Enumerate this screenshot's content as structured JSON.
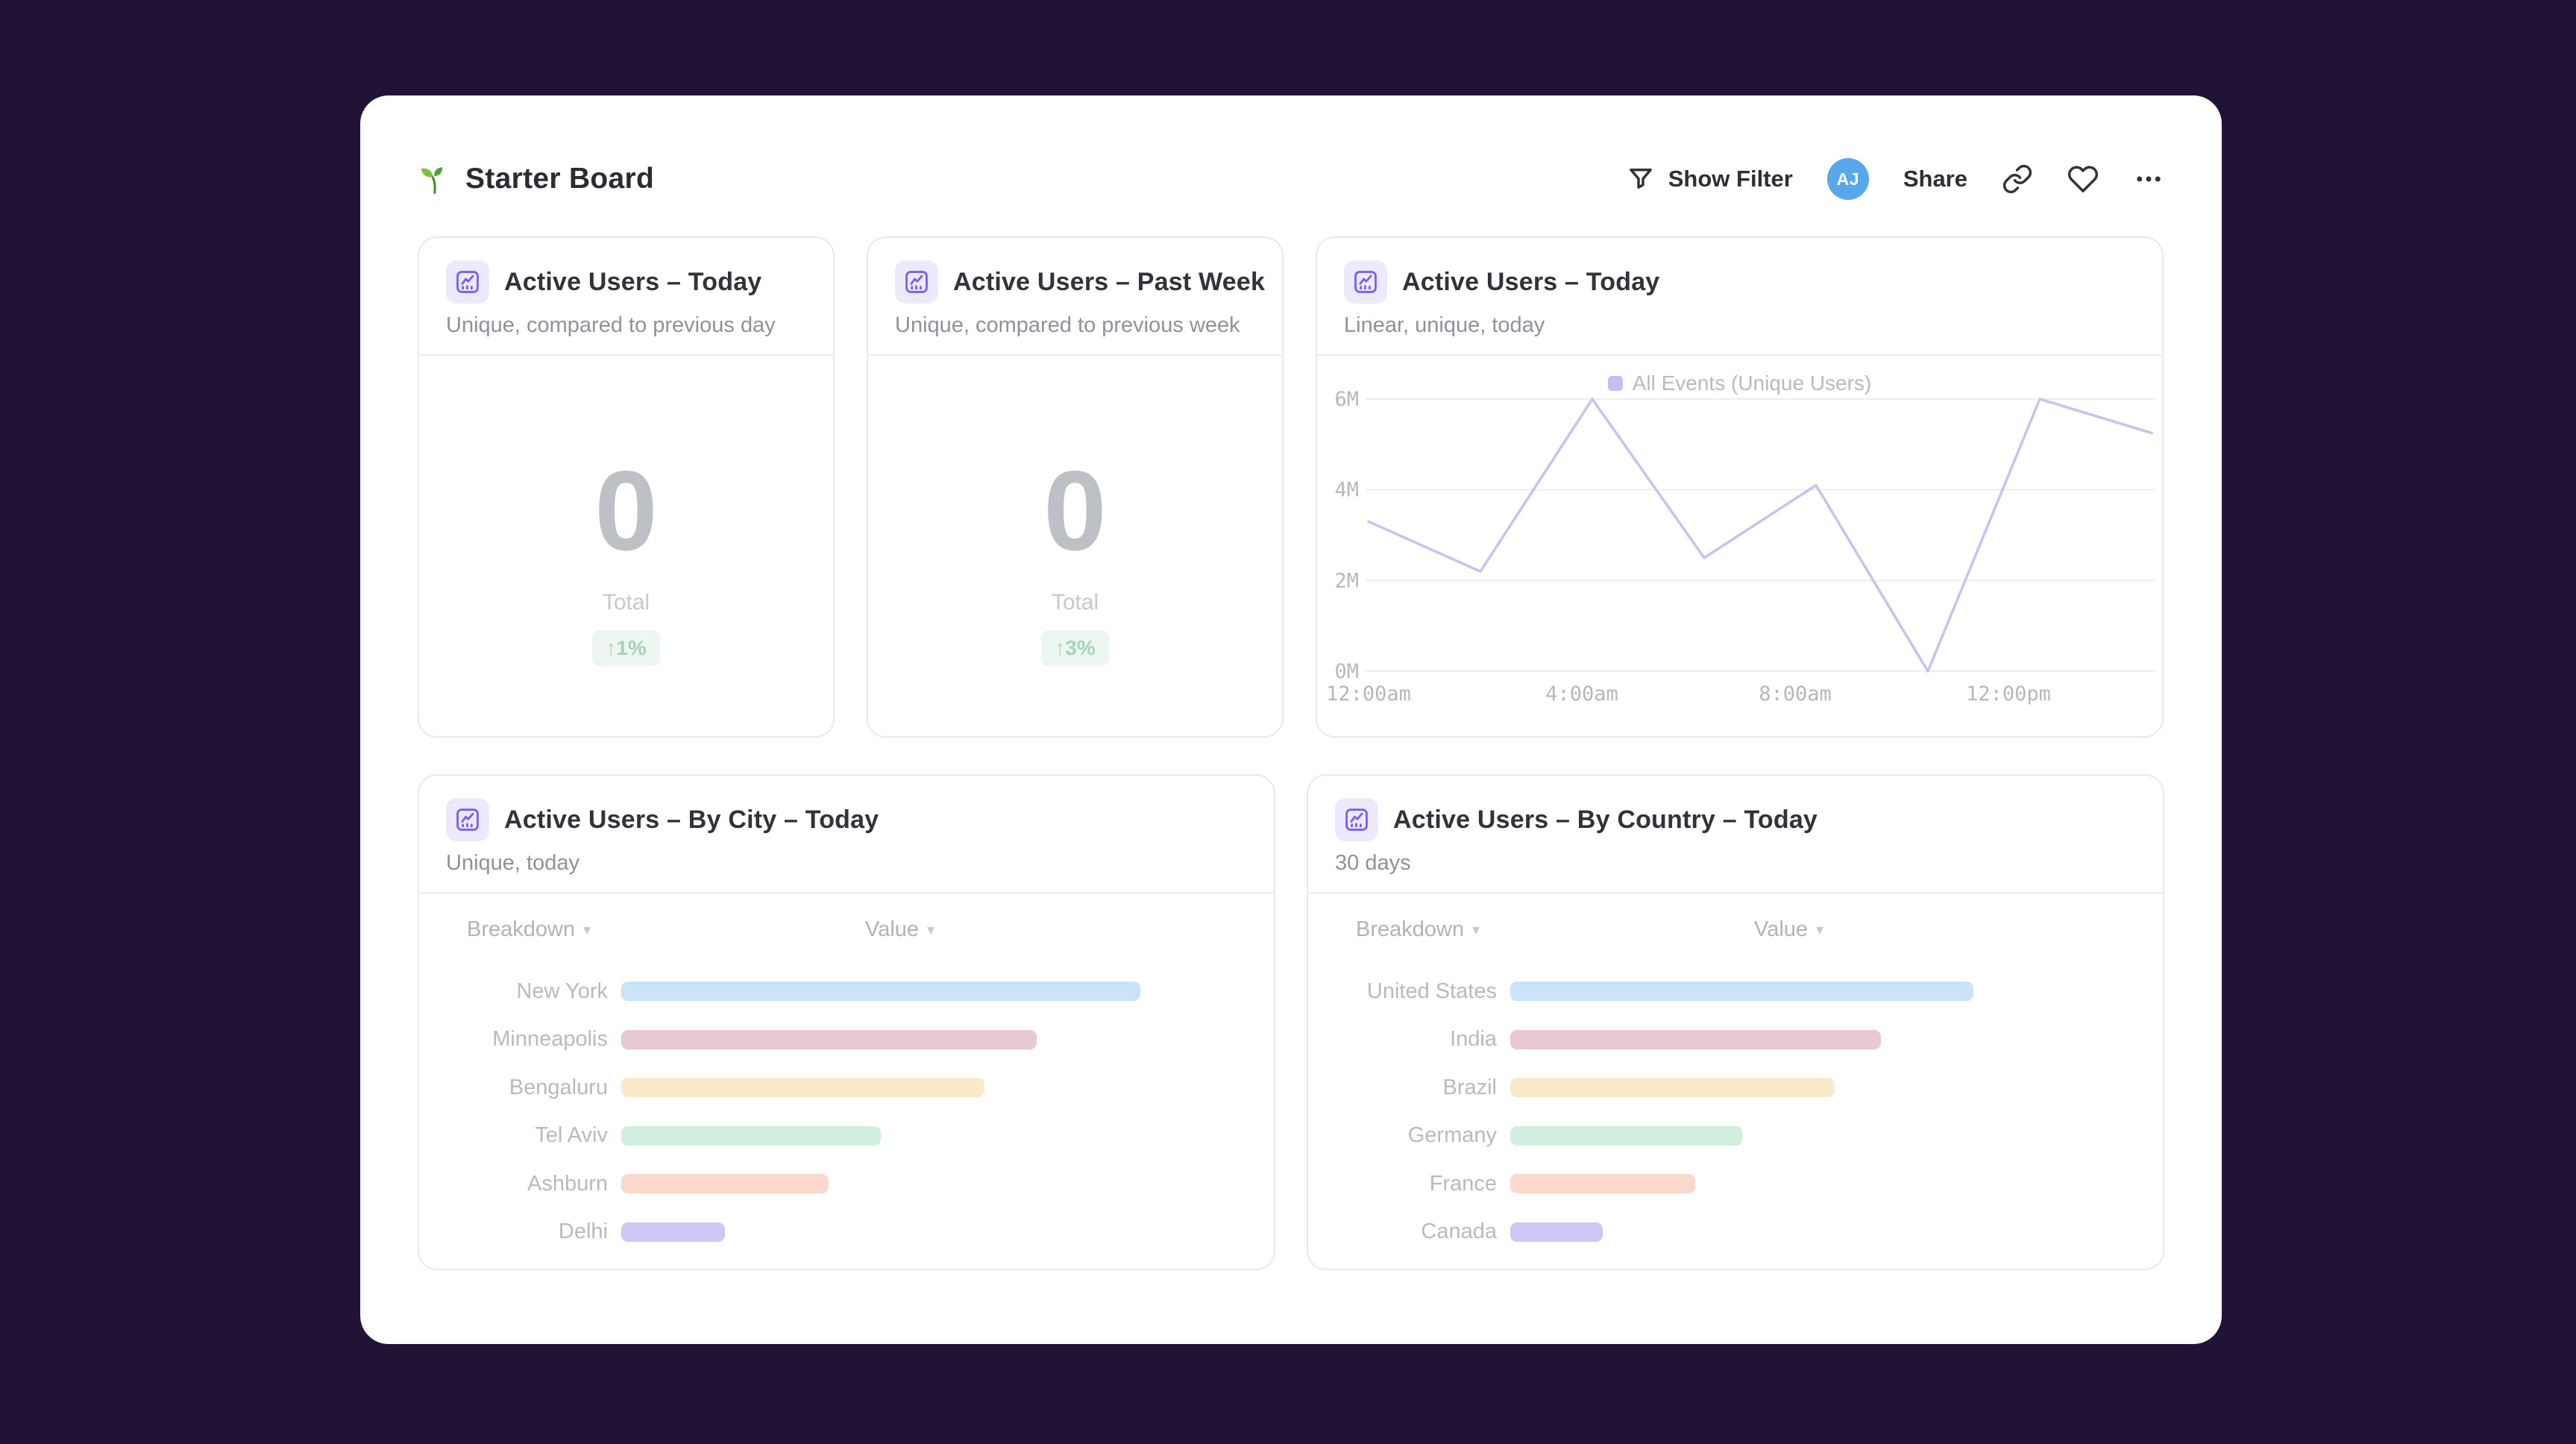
{
  "theme": {
    "page_bg": "#201336",
    "accent_purple": "#7b5ff5",
    "avatar_blue": "#58a6ec",
    "badge_bg": "#edf6f1",
    "badge_text": "#a7d3be",
    "card_border": "#e9e9ed"
  },
  "header": {
    "title": "Starter Board",
    "title_icon": "seedling",
    "show_filter_label": "Show Filter",
    "avatar_initials": "AJ",
    "share_label": "Share"
  },
  "cards": {
    "kpi1": {
      "title": "Active Users – Today",
      "subtitle": "Unique, compared to previous day",
      "value": "0",
      "total_label": "Total",
      "delta": "↑1%"
    },
    "kpi2": {
      "title": "Active Users – Past Week",
      "subtitle": "Unique, compared to previous week",
      "value": "0",
      "total_label": "Total",
      "delta": "↑3%"
    },
    "line": {
      "title": "Active Users – Today",
      "subtitle": "Linear, unique, today",
      "legend": "All Events (Unique Users)"
    },
    "city": {
      "title": "Active Users – By City – Today",
      "subtitle": "Unique, today",
      "col1": "Breakdown",
      "col2": "Value",
      "caret": "▾"
    },
    "country": {
      "title": "Active Users – By Country – Today",
      "subtitle": "30 days",
      "col1": "Breakdown",
      "col2": "Value",
      "caret": "▾"
    }
  },
  "chart_data": [
    {
      "type": "line",
      "title": "Active Users – Today",
      "legend_position": "top-center",
      "grid": "horizontal",
      "line_color": "#c8c2f1",
      "ylim_millions": [
        0,
        6
      ],
      "y_tick_values": [
        0,
        2,
        4,
        6
      ],
      "y_tick_labels": [
        "0M",
        "2M",
        "4M",
        "6M"
      ],
      "x_tick_labels": [
        "12:00am",
        "4:00am",
        "8:00am",
        "12:00pm"
      ],
      "series": [
        {
          "name": "All Events (Unique Users)",
          "x": [
            "12:00am",
            "2:00am",
            "4:00am",
            "6:00am",
            "8:00am",
            "10:00am",
            "12:00pm",
            "2:00pm"
          ],
          "values_millions": [
            3.3,
            2.2,
            6.0,
            2.5,
            4.1,
            0.0,
            6.0,
            5.25
          ]
        }
      ]
    },
    {
      "type": "bar",
      "title": "Active Users – By City – Today",
      "orientation": "horizontal",
      "categories": [
        "New York",
        "Minneapolis",
        "Bengaluru",
        "Tel Aviv",
        "Ashburn",
        "Delhi"
      ],
      "values_relative": [
        100,
        80,
        70,
        50,
        40,
        20
      ],
      "colors": [
        "#cbe3f6",
        "#e6c9d3",
        "#f9ebc8",
        "#d0efdf",
        "#fcd8cc",
        "#cfc7f3"
      ]
    },
    {
      "type": "bar",
      "title": "Active Users – By Country – Today",
      "orientation": "horizontal",
      "categories": [
        "United States",
        "India",
        "Brazil",
        "Germany",
        "France",
        "Canada"
      ],
      "values_relative": [
        100,
        80,
        70,
        50,
        40,
        20
      ],
      "colors": [
        "#cbe3f6",
        "#e6c9d3",
        "#f9ebc8",
        "#d0efdf",
        "#fcd8cc",
        "#cfc7f3"
      ]
    }
  ]
}
